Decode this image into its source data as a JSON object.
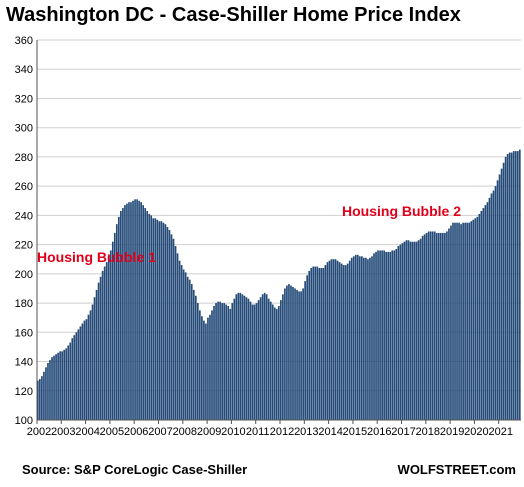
{
  "chart_data": {
    "type": "bar",
    "title": "Washington DC - Case-Shiller Home Price Index",
    "xlabel": "",
    "ylabel": "",
    "ylim": [
      100,
      360
    ],
    "yticks": [
      100,
      120,
      140,
      160,
      180,
      200,
      220,
      240,
      260,
      280,
      300,
      320,
      340,
      360
    ],
    "xtick_labels": [
      "2002",
      "2003",
      "2004",
      "2005",
      "2006",
      "2007",
      "2008",
      "2009",
      "2010",
      "2011",
      "2012",
      "2013",
      "2014",
      "2015",
      "2016",
      "2017",
      "2018",
      "2019",
      "2020",
      "2021"
    ],
    "frequency": "monthly",
    "start": "2002-01",
    "end": "2021-11",
    "grid": true,
    "bar_color": "#244a78",
    "annotations": [
      {
        "text": "Housing Bubble 1",
        "color": "#e0001b"
      },
      {
        "text": "Housing Bubble 2",
        "color": "#e0001b"
      }
    ],
    "series": [
      {
        "values": [
          127,
          128,
          130,
          133,
          136,
          139,
          141,
          143,
          144,
          145,
          146,
          147,
          147,
          148,
          149,
          151,
          153,
          156,
          158,
          160,
          162,
          164,
          166,
          168,
          169,
          172,
          175,
          179,
          184,
          189,
          194,
          198,
          202,
          205,
          208,
          212,
          216,
          222,
          228,
          234,
          239,
          243,
          245,
          247,
          248,
          249,
          249,
          250,
          251,
          251,
          250,
          249,
          247,
          245,
          243,
          241,
          240,
          238,
          238,
          237,
          236,
          236,
          235,
          234,
          232,
          230,
          227,
          224,
          219,
          214,
          209,
          206,
          203,
          201,
          198,
          196,
          193,
          189,
          185,
          180,
          175,
          171,
          168,
          166,
          170,
          172,
          175,
          178,
          180,
          181,
          181,
          180,
          180,
          179,
          178,
          176,
          180,
          183,
          186,
          187,
          187,
          186,
          185,
          184,
          183,
          181,
          179,
          179,
          180,
          182,
          184,
          186,
          187,
          186,
          183,
          181,
          179,
          177,
          176,
          178,
          182,
          186,
          190,
          192,
          193,
          192,
          191,
          190,
          189,
          188,
          188,
          190,
          195,
          199,
          202,
          204,
          205,
          205,
          205,
          204,
          204,
          204,
          206,
          208,
          209,
          210,
          210,
          210,
          209,
          208,
          207,
          206,
          206,
          207,
          209,
          211,
          212,
          213,
          213,
          212,
          212,
          211,
          211,
          210,
          211,
          212,
          214,
          215,
          216,
          216,
          216,
          216,
          215,
          215,
          215,
          216,
          216,
          217,
          219,
          220,
          221,
          222,
          223,
          223,
          222,
          222,
          222,
          222,
          223,
          224,
          226,
          227,
          228,
          229,
          229,
          229,
          229,
          228,
          228,
          228,
          228,
          228,
          229,
          231,
          233,
          235,
          235,
          235,
          235,
          234,
          235,
          235,
          235,
          235,
          236,
          237,
          238,
          239,
          241,
          243,
          245,
          247,
          249,
          252,
          255,
          257,
          260,
          264,
          268,
          272,
          276,
          280,
          282,
          283,
          283,
          284,
          284,
          284,
          285
        ]
      }
    ]
  },
  "source": "Source: S&P CoreLogic Case-Shiller",
  "brand": "WOLFSTREET.com"
}
